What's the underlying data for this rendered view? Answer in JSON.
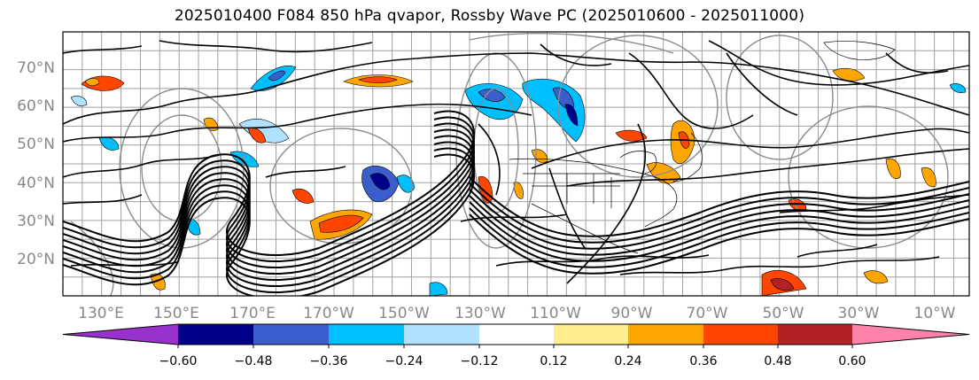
{
  "title": "2025010400 F084 850 hPa qvapor, Rossby Wave PC (2025010600 - 2025011000)",
  "map": {
    "lat_labels": [
      "70°N",
      "60°N",
      "50°N",
      "40°N",
      "30°N",
      "20°N"
    ],
    "lon_labels": [
      "130°E",
      "150°E",
      "170°E",
      "170°W",
      "150°W",
      "130°W",
      "110°W",
      "90°W",
      "70°W",
      "50°W",
      "30°W",
      "10°W"
    ],
    "lat_range": [
      10,
      80
    ],
    "lon_range": [
      120,
      354
    ]
  },
  "colorbar": {
    "tick_labels": [
      "−0.60",
      "−0.48",
      "−0.36",
      "−0.24",
      "−0.12",
      "0.12",
      "0.24",
      "0.36",
      "0.48",
      "0.60"
    ],
    "colors": [
      "#9932cc",
      "#00008b",
      "#3a5fcd",
      "#00bfff",
      "#b0e2ff",
      "#ffffff",
      "#ffec8b",
      "#ffa500",
      "#ff4500",
      "#b22222",
      "#ff82ab"
    ],
    "extend": "both"
  },
  "colors": {
    "contour": "#000000",
    "grey_contour": "#8c8c8c",
    "grid": "#a0a0a0",
    "axis_label": "#888888"
  }
}
